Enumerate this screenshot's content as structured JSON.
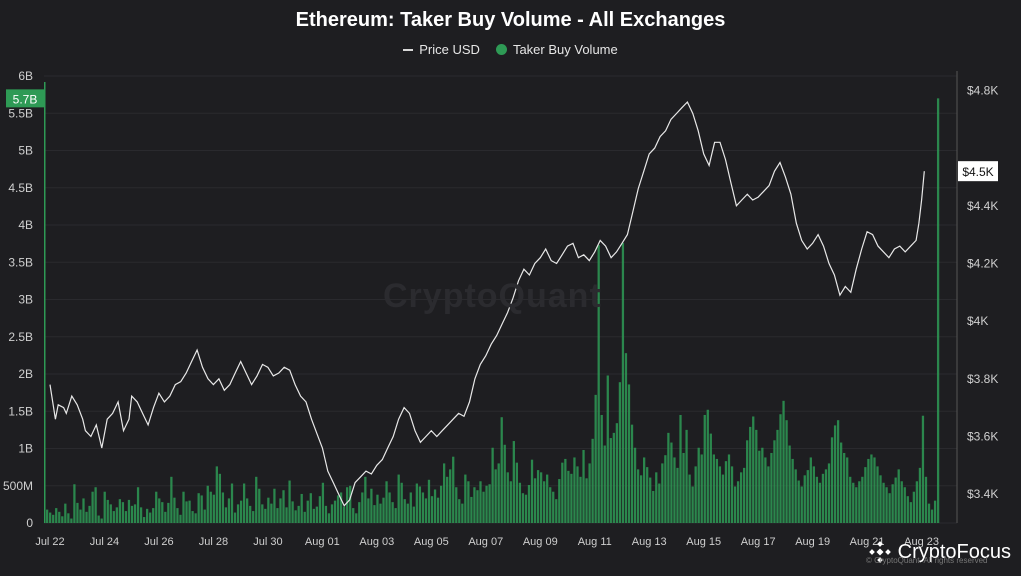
{
  "chart_data": {
    "type": "bar+line",
    "title": "Ethereum: Taker Buy Volume - All Exchanges",
    "legend": [
      "Price USD",
      "Taker Buy Volume"
    ],
    "watermark": "CryptoQuant",
    "x_ticks": [
      "Jul 22",
      "Jul 24",
      "Jul 26",
      "Jul 28",
      "Jul 30",
      "Aug 01",
      "Aug 03",
      "Aug 05",
      "Aug 07",
      "Aug 09",
      "Aug 11",
      "Aug 13",
      "Aug 15",
      "Aug 17",
      "Aug 19",
      "Aug 21",
      "Aug 23"
    ],
    "left_axis": {
      "ticks": [
        "0",
        "500M",
        "1B",
        "1.5B",
        "2B",
        "2.5B",
        "3B",
        "3.5B",
        "4B",
        "4.5B",
        "5B",
        "5.5B",
        "6B"
      ],
      "ylim": [
        0,
        6000000000
      ]
    },
    "right_axis": {
      "ticks": [
        "$3.4K",
        "$3.6K",
        "$3.8K",
        "$4K",
        "$4.2K",
        "$4.4K",
        "$4.5K",
        "$4.8K"
      ],
      "ylim": [
        3.3,
        4.85
      ]
    },
    "last_value_labels": {
      "volume": "5.7B",
      "price": "$4.5K"
    },
    "colors": {
      "background": "#1e1e21",
      "price_line": "#e8e8e8",
      "volume_bar": "#2e9a55",
      "grid": "#2a2a2e"
    },
    "price_series": {
      "name": "Price USD",
      "unit": "day index from Jul 22",
      "points": [
        [
          0.0,
          3.78
        ],
        [
          0.1,
          3.72
        ],
        [
          0.2,
          3.66
        ],
        [
          0.3,
          3.71
        ],
        [
          0.5,
          3.7
        ],
        [
          0.6,
          3.68
        ],
        [
          0.8,
          3.74
        ],
        [
          1.0,
          3.71
        ],
        [
          1.2,
          3.66
        ],
        [
          1.3,
          3.62
        ],
        [
          1.5,
          3.6
        ],
        [
          1.7,
          3.64
        ],
        [
          1.9,
          3.56
        ],
        [
          2.1,
          3.66
        ],
        [
          2.3,
          3.68
        ],
        [
          2.5,
          3.72
        ],
        [
          2.7,
          3.62
        ],
        [
          2.9,
          3.66
        ],
        [
          3.0,
          3.74
        ],
        [
          3.2,
          3.72
        ],
        [
          3.4,
          3.68
        ],
        [
          3.6,
          3.64
        ],
        [
          3.8,
          3.7
        ],
        [
          4.0,
          3.75
        ],
        [
          4.2,
          3.72
        ],
        [
          4.4,
          3.74
        ],
        [
          4.6,
          3.78
        ],
        [
          4.8,
          3.79
        ],
        [
          5.0,
          3.82
        ],
        [
          5.2,
          3.86
        ],
        [
          5.4,
          3.9
        ],
        [
          5.6,
          3.84
        ],
        [
          5.8,
          3.8
        ],
        [
          6.0,
          3.78
        ],
        [
          6.2,
          3.8
        ],
        [
          6.4,
          3.76
        ],
        [
          6.6,
          3.78
        ],
        [
          6.8,
          3.82
        ],
        [
          7.0,
          3.86
        ],
        [
          7.2,
          3.82
        ],
        [
          7.4,
          3.78
        ],
        [
          7.6,
          3.81
        ],
        [
          7.8,
          3.85
        ],
        [
          8.0,
          3.84
        ],
        [
          8.2,
          3.81
        ],
        [
          8.4,
          3.82
        ],
        [
          8.6,
          3.84
        ],
        [
          8.8,
          3.83
        ],
        [
          9.0,
          3.78
        ],
        [
          9.2,
          3.74
        ],
        [
          9.4,
          3.72
        ],
        [
          9.6,
          3.66
        ],
        [
          9.8,
          3.61
        ],
        [
          10.0,
          3.56
        ],
        [
          10.2,
          3.48
        ],
        [
          10.4,
          3.44
        ],
        [
          10.6,
          3.4
        ],
        [
          10.8,
          3.36
        ],
        [
          11.0,
          3.38
        ],
        [
          11.2,
          3.44
        ],
        [
          11.4,
          3.46
        ],
        [
          11.6,
          3.48
        ],
        [
          11.8,
          3.47
        ],
        [
          12.0,
          3.5
        ],
        [
          12.2,
          3.52
        ],
        [
          12.4,
          3.56
        ],
        [
          12.6,
          3.6
        ],
        [
          12.8,
          3.66
        ],
        [
          13.0,
          3.7
        ],
        [
          13.2,
          3.68
        ],
        [
          13.4,
          3.62
        ],
        [
          13.6,
          3.58
        ],
        [
          13.8,
          3.6
        ],
        [
          14.0,
          3.62
        ],
        [
          14.2,
          3.6
        ],
        [
          14.4,
          3.62
        ],
        [
          14.6,
          3.64
        ],
        [
          14.8,
          3.66
        ],
        [
          15.0,
          3.68
        ],
        [
          15.2,
          3.67
        ],
        [
          15.4,
          3.72
        ],
        [
          15.6,
          3.8
        ],
        [
          15.8,
          3.85
        ],
        [
          16.0,
          3.88
        ],
        [
          16.2,
          3.92
        ],
        [
          16.4,
          3.95
        ],
        [
          16.6,
          3.99
        ],
        [
          16.8,
          4.03
        ],
        [
          17.0,
          4.08
        ],
        [
          17.2,
          4.14
        ],
        [
          17.4,
          4.18
        ],
        [
          17.6,
          4.16
        ],
        [
          17.8,
          4.2
        ],
        [
          18.0,
          4.22
        ],
        [
          18.2,
          4.25
        ],
        [
          18.4,
          4.21
        ],
        [
          18.6,
          4.2
        ],
        [
          18.8,
          4.23
        ],
        [
          19.0,
          4.26
        ],
        [
          19.2,
          4.27
        ],
        [
          19.4,
          4.22
        ],
        [
          19.6,
          4.23
        ],
        [
          19.8,
          4.21
        ],
        [
          20.0,
          4.24
        ],
        [
          20.2,
          4.28
        ],
        [
          20.4,
          4.26
        ],
        [
          20.6,
          4.22
        ],
        [
          20.8,
          4.24
        ],
        [
          21.0,
          4.27
        ],
        [
          21.2,
          4.3
        ],
        [
          21.4,
          4.38
        ],
        [
          21.6,
          4.46
        ],
        [
          21.8,
          4.52
        ],
        [
          22.0,
          4.58
        ],
        [
          22.2,
          4.6
        ],
        [
          22.4,
          4.64
        ],
        [
          22.6,
          4.66
        ],
        [
          22.8,
          4.7
        ],
        [
          23.0,
          4.72
        ],
        [
          23.2,
          4.74
        ],
        [
          23.4,
          4.76
        ],
        [
          23.6,
          4.72
        ],
        [
          23.8,
          4.66
        ],
        [
          24.0,
          4.58
        ],
        [
          24.2,
          4.54
        ],
        [
          24.4,
          4.62
        ],
        [
          24.6,
          4.62
        ],
        [
          24.8,
          4.56
        ],
        [
          25.0,
          4.48
        ],
        [
          25.2,
          4.4
        ],
        [
          25.4,
          4.42
        ],
        [
          25.6,
          4.44
        ],
        [
          25.8,
          4.42
        ],
        [
          26.0,
          4.43
        ],
        [
          26.2,
          4.45
        ],
        [
          26.4,
          4.47
        ],
        [
          26.6,
          4.52
        ],
        [
          26.8,
          4.55
        ],
        [
          27.0,
          4.5
        ],
        [
          27.2,
          4.44
        ],
        [
          27.4,
          4.34
        ],
        [
          27.6,
          4.28
        ],
        [
          27.8,
          4.25
        ],
        [
          28.0,
          4.27
        ],
        [
          28.2,
          4.3
        ],
        [
          28.4,
          4.26
        ],
        [
          28.6,
          4.2
        ],
        [
          28.8,
          4.16
        ],
        [
          29.0,
          4.09
        ],
        [
          29.2,
          4.12
        ],
        [
          29.4,
          4.1
        ],
        [
          29.6,
          4.18
        ],
        [
          29.8,
          4.25
        ],
        [
          30.0,
          4.31
        ],
        [
          30.2,
          4.3
        ],
        [
          30.4,
          4.26
        ],
        [
          30.6,
          4.24
        ],
        [
          30.8,
          4.22
        ],
        [
          31.0,
          4.25
        ],
        [
          31.2,
          4.26
        ],
        [
          31.4,
          4.24
        ],
        [
          31.6,
          4.26
        ],
        [
          31.8,
          4.28
        ],
        [
          31.9,
          4.34
        ],
        [
          32.0,
          4.42
        ],
        [
          32.1,
          4.52
        ]
      ]
    },
    "volume_series": {
      "name": "Taker Buy Volume",
      "values": [
        180,
        140,
        110,
        200,
        150,
        90,
        260,
        130,
        60,
        520,
        270,
        180,
        330,
        150,
        230,
        420,
        480,
        100,
        60,
        420,
        310,
        250,
        160,
        210,
        320,
        280,
        160,
        310,
        230,
        250,
        480,
        210,
        80,
        190,
        140,
        200,
        420,
        330,
        280,
        150,
        270,
        620,
        340,
        200,
        110,
        420,
        290,
        300,
        160,
        130,
        400,
        370,
        180,
        500,
        420,
        380,
        760,
        660,
        410,
        210,
        330,
        530,
        140,
        250,
        300,
        530,
        330,
        230,
        160,
        620,
        460,
        250,
        190,
        340,
        260,
        460,
        200,
        330,
        440,
        210,
        570,
        290,
        170,
        230,
        390,
        150,
        300,
        400,
        190,
        220,
        360,
        540,
        230,
        130,
        250,
        300,
        370,
        410,
        220,
        480,
        500,
        200,
        130,
        280,
        410,
        620,
        330,
        460,
        240,
        380,
        260,
        340,
        560,
        410,
        280,
        200,
        650,
        540,
        320,
        260,
        410,
        220,
        530,
        490,
        410,
        330,
        580,
        360,
        450,
        340,
        500,
        800,
        620,
        720,
        890,
        480,
        320,
        260,
        650,
        560,
        350,
        480,
        440,
        560,
        420,
        500,
        520,
        1010,
        720,
        800,
        1420,
        1050,
        680,
        560,
        1100,
        810,
        540,
        400,
        380,
        510,
        850,
        600,
        710,
        680,
        560,
        650,
        480,
        420,
        320,
        590,
        810,
        860,
        700,
        660,
        880,
        760,
        620,
        980,
        600,
        800,
        1130,
        1720,
        3730,
        1450,
        1040,
        1980,
        1140,
        1210,
        1340,
        1890,
        3760,
        2280,
        1860,
        1320,
        1010,
        720,
        640,
        880,
        750,
        610,
        430,
        680,
        530,
        800,
        910,
        1210,
        1080,
        880,
        740,
        1450,
        940,
        1250,
        650,
        490,
        760,
        1010,
        920,
        1450,
        1520,
        1200,
        920,
        860,
        760,
        650,
        830,
        920,
        760,
        490,
        560,
        680,
        740,
        1110,
        1290,
        1430,
        1250,
        970,
        1010,
        880,
        760,
        940,
        1110,
        1250,
        1460,
        1640,
        1380,
        1040,
        860,
        720,
        570,
        490,
        640,
        710,
        880,
        760,
        620,
        540,
        660,
        720,
        800,
        1150,
        1310,
        1380,
        1080,
        940,
        880,
        620,
        540,
        480,
        560,
        620,
        750,
        860,
        920,
        880,
        760,
        640,
        540,
        480,
        400,
        520,
        610,
        720,
        560,
        480,
        360,
        280,
        420,
        560,
        740,
        1440,
        620,
        260,
        180,
        300,
        5700
      ]
    }
  },
  "brand": {
    "name": "CryptoFocus",
    "source_note": "© CryptoQuant. All rights reserved"
  }
}
